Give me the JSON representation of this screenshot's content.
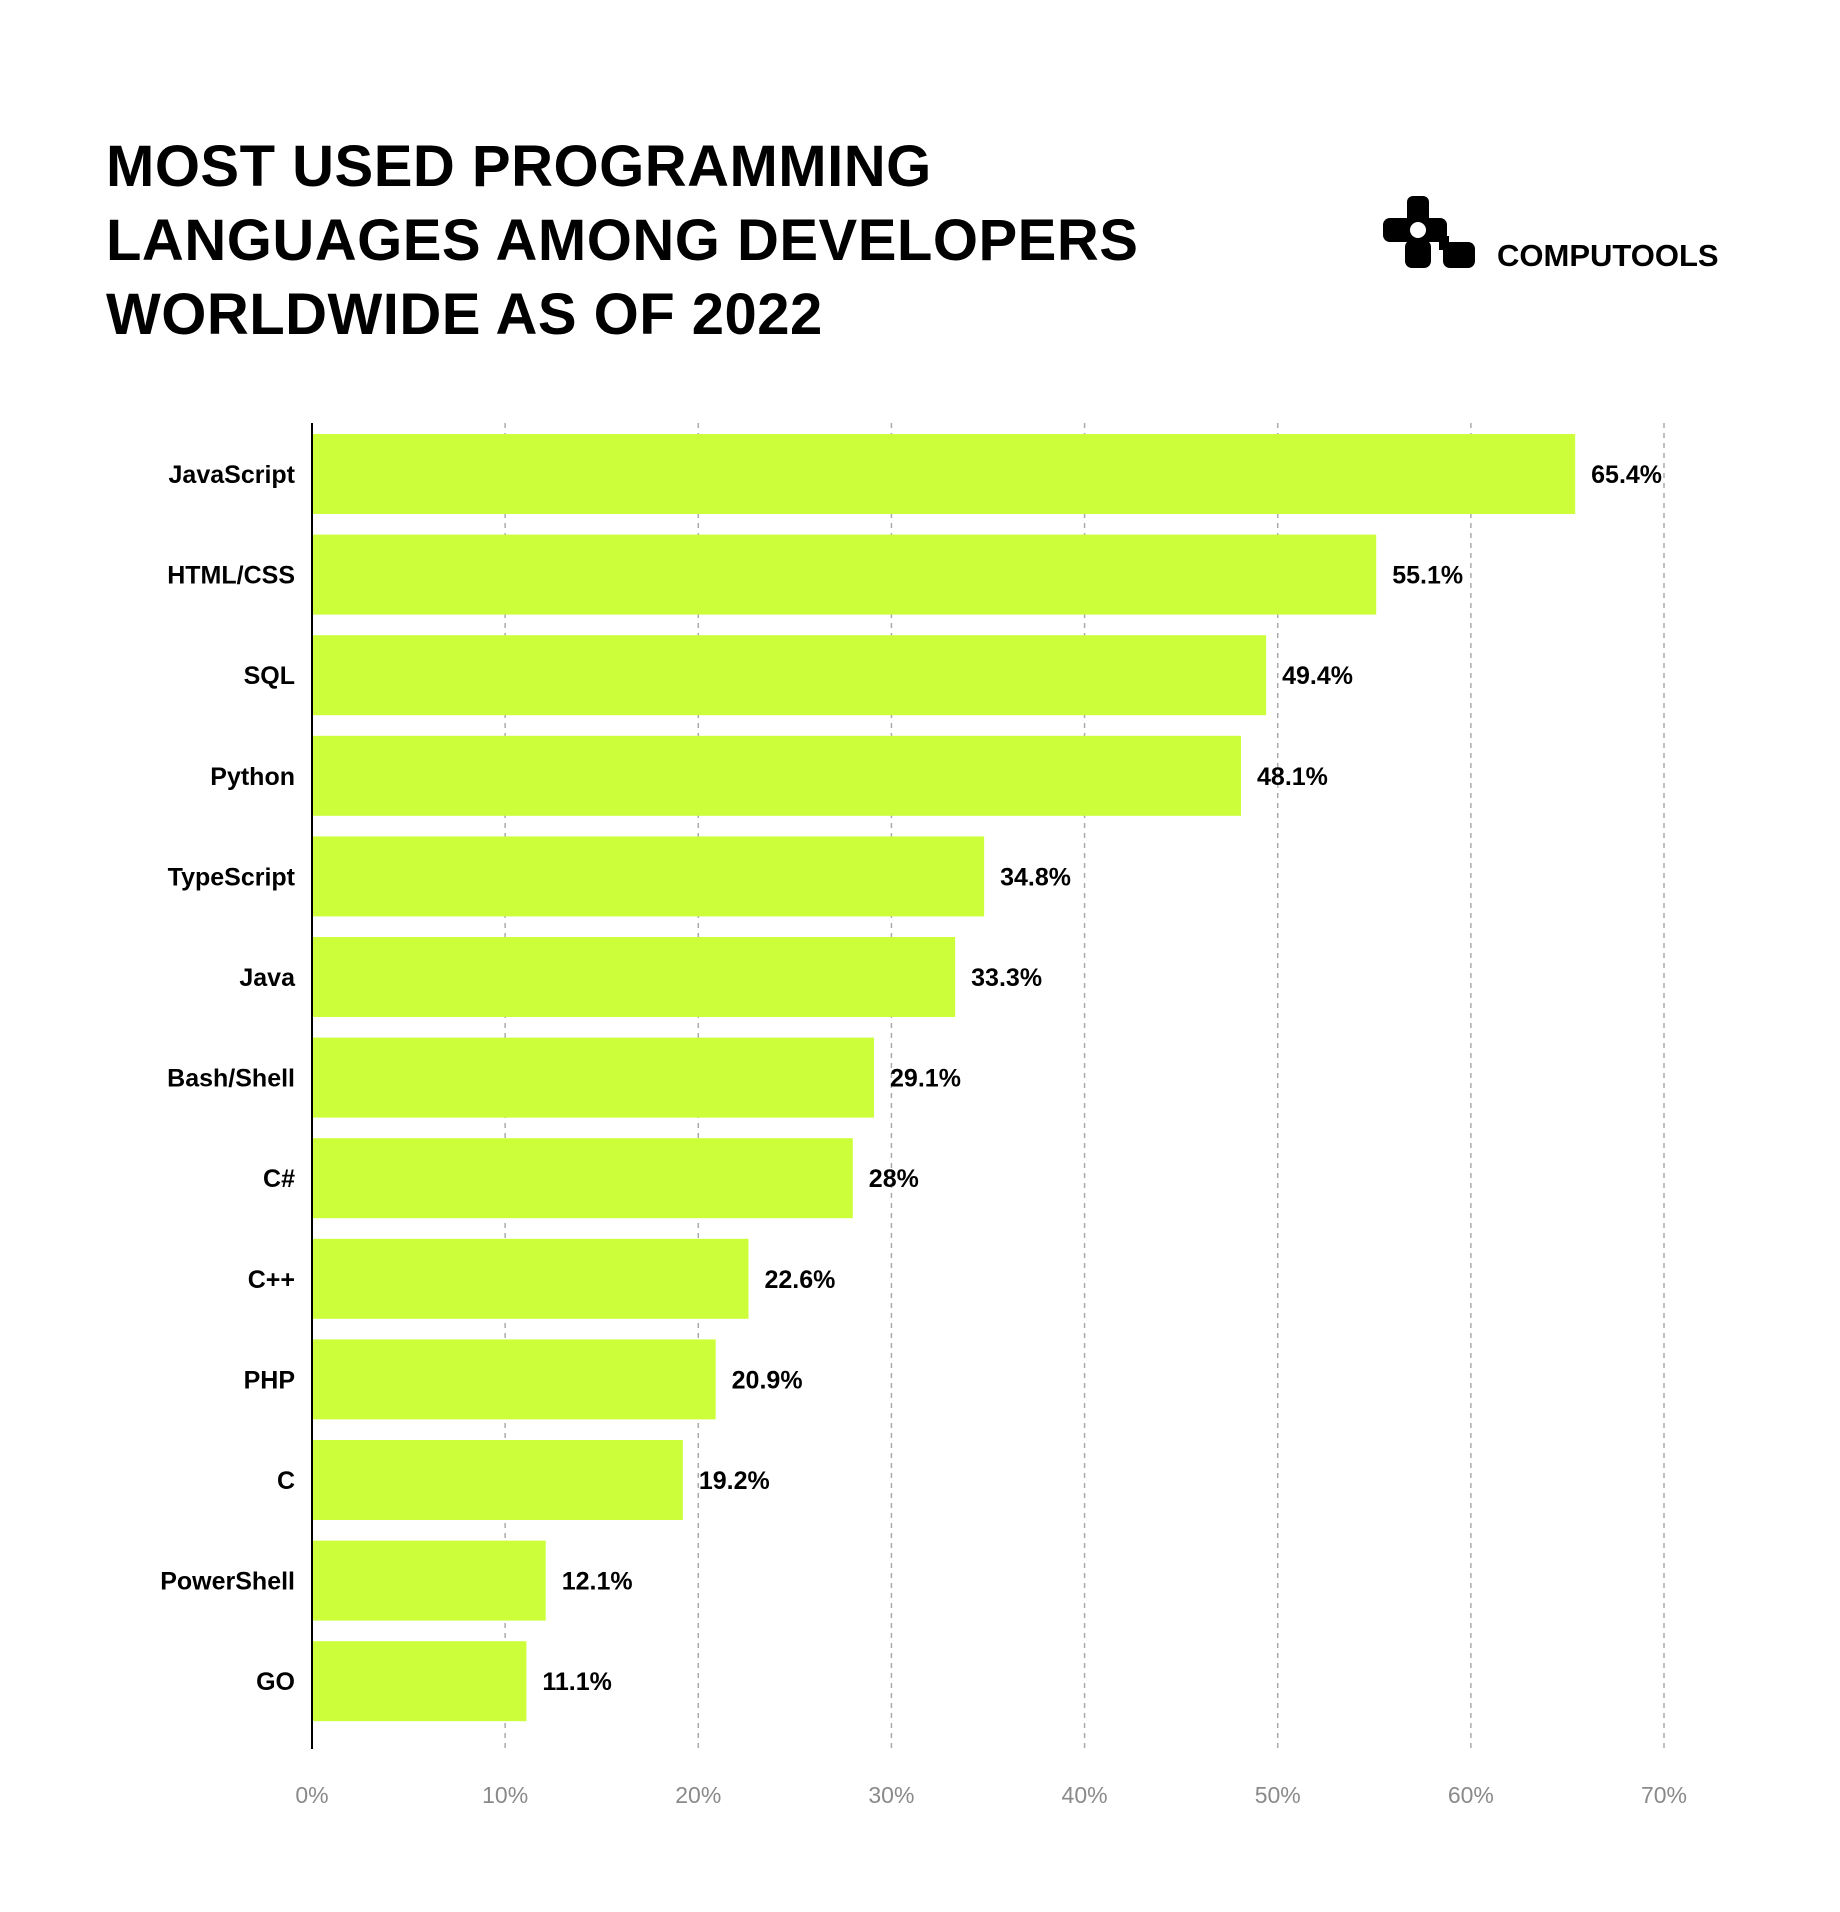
{
  "title_lines": [
    "MOST USED PROGRAMMING",
    "LANGUAGES AMONG DEVELOPERS",
    "WORLDWIDE AS OF 2022"
  ],
  "logo": {
    "text": "COMPUTOOLS"
  },
  "chart_data": {
    "type": "bar",
    "orientation": "horizontal",
    "title": "MOST USED PROGRAMMING LANGUAGES AMONG DEVELOPERS WORLDWIDE AS OF 2022",
    "categories": [
      "JavaScript",
      "HTML/CSS",
      "SQL",
      "Python",
      "TypeScript",
      "Java",
      "Bash/Shell",
      "C#",
      "C++",
      "PHP",
      "C",
      "PowerShell",
      "GO"
    ],
    "values": [
      65.4,
      55.1,
      49.4,
      48.1,
      34.8,
      33.3,
      29.1,
      28,
      22.6,
      20.9,
      19.2,
      12.1,
      11.1
    ],
    "value_labels": [
      "65.4%",
      "55.1%",
      "49.4%",
      "48.1%",
      "34.8%",
      "33.3%",
      "29.1%",
      "28%",
      "22.6%",
      "20.9%",
      "19.2%",
      "12.1%",
      "11.1%"
    ],
    "xlim": [
      0,
      70
    ],
    "xticks": [
      "0%",
      "10%",
      "20%",
      "30%",
      "40%",
      "50%",
      "60%",
      "70%"
    ],
    "grid": "vertical dashed",
    "bar_color": "#CCFF3A",
    "xlabel": "",
    "ylabel": ""
  }
}
